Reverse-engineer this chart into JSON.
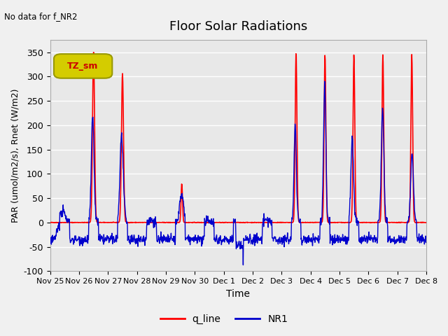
{
  "title": "Floor Solar Radiations",
  "xlabel": "Time",
  "ylabel": "PAR (umol/m2/s), Rnet (W/m2)",
  "ylim": [
    -100,
    375
  ],
  "annotation_text": "No data for f_NR2",
  "legend_label": "TZ_sm",
  "line1_label": "q_line",
  "line2_label": "NR1",
  "line1_color": "#ff0000",
  "line2_color": "#0000cc",
  "xtick_positions": [
    0,
    1,
    2,
    3,
    4,
    5,
    6,
    7,
    8,
    9,
    10,
    11,
    12,
    13
  ],
  "xtick_labels": [
    "Nov 25",
    "Nov 26",
    "Nov 27",
    "Nov 28",
    "Nov 29",
    "Nov 30",
    "Dec 1",
    "Dec 2",
    "Dec 3",
    "Dec 4",
    "Dec 5",
    "Dec 6",
    "Dec 7",
    "Dec 8"
  ],
  "ytick_values": [
    -100,
    -50,
    0,
    50,
    100,
    150,
    200,
    250,
    300,
    350
  ],
  "fig_facecolor": "#f0f0f0",
  "ax_facecolor": "#e8e8e8",
  "legend_box_facecolor": "#d4cc00",
  "legend_box_edgecolor": "#999900",
  "legend_text_color": "#cc0000",
  "n_days": 13
}
